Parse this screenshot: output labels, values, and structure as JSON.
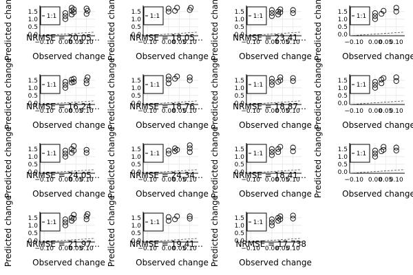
{
  "chart_data": {
    "type": "scatter",
    "layout": {
      "rows": 4,
      "cols": 4
    },
    "shared": {
      "xlabel": "Observed change",
      "ylabel": "Predicted change",
      "xlim": [
        -0.12,
        0.14
      ],
      "ylim": [
        -0.1,
        1.9
      ],
      "xticks": [
        -0.1,
        0.0,
        0.05,
        0.1
      ],
      "xtick_labels": [
        "−0.10",
        "0.00",
        "0.05",
        "0.10"
      ],
      "yticks": [
        0.0,
        0.5,
        1.0,
        1.5
      ],
      "ytick_labels": [
        "0.0",
        "0.5",
        "1.0",
        "1.5"
      ],
      "legend": "1:1",
      "legend_placement": "top-left",
      "grid": true,
      "marker": "open-circle"
    },
    "panels": [
      {
        "nrmse_label": "NRMSE = 20.05…",
        "points": {
          "x": [
            0.0,
            0.0,
            0.0,
            0.03,
            0.03,
            0.03,
            0.04,
            0.04,
            0.1,
            0.1,
            0.105
          ],
          "y": [
            1.0,
            1.2,
            1.4,
            1.3,
            1.55,
            1.75,
            1.45,
            1.65,
            1.35,
            1.7,
            1.55
          ]
        }
      },
      {
        "nrmse_label": "NRMSE = 18.05…",
        "points": {
          "x": [
            0.0,
            0.0,
            0.03,
            0.04,
            0.1,
            0.105
          ],
          "y": [
            1.5,
            1.7,
            1.55,
            1.75,
            1.6,
            1.75
          ]
        }
      },
      {
        "nrmse_label": "NRMSE = 23.41…",
        "points": {
          "x": [
            0.0,
            0.0,
            0.0,
            0.03,
            0.03,
            0.04,
            0.04,
            0.1,
            0.1
          ],
          "y": [
            1.2,
            1.4,
            1.6,
            1.3,
            1.5,
            1.45,
            1.65,
            1.4,
            1.6
          ]
        }
      },
      {
        "nrmse_label": "",
        "points": {
          "x": [
            0.0,
            0.0,
            0.0,
            0.03,
            0.04,
            0.1,
            0.1
          ],
          "y": [
            1.0,
            1.2,
            1.4,
            1.35,
            1.55,
            1.5,
            1.75
          ]
        }
      },
      {
        "nrmse_label": "NRMSE = 16.24…",
        "points": {
          "x": [
            0.0,
            0.0,
            0.0,
            0.03,
            0.03,
            0.04,
            0.04,
            0.1,
            0.1,
            0.105
          ],
          "y": [
            1.0,
            1.2,
            1.4,
            1.35,
            1.55,
            1.4,
            1.6,
            1.3,
            1.5,
            1.7
          ]
        }
      },
      {
        "nrmse_label": "NRMSE = 18.76…",
        "points": {
          "x": [
            0.0,
            0.0,
            0.0,
            0.03,
            0.04,
            0.1,
            0.1
          ],
          "y": [
            1.3,
            1.55,
            1.75,
            1.6,
            1.75,
            1.5,
            1.7
          ]
        }
      },
      {
        "nrmse_label": "NRMSE = 18.87…",
        "points": {
          "x": [
            0.0,
            0.0,
            0.0,
            0.03,
            0.04,
            0.04,
            0.1,
            0.1
          ],
          "y": [
            1.2,
            1.4,
            1.6,
            1.4,
            1.5,
            1.7,
            1.45,
            1.65
          ]
        }
      },
      {
        "nrmse_label": "",
        "points": {
          "x": [
            0.0,
            0.0,
            0.0,
            0.03,
            0.03,
            0.04,
            0.1,
            0.1
          ],
          "y": [
            1.0,
            1.2,
            1.4,
            1.3,
            1.55,
            1.65,
            1.45,
            1.7
          ]
        }
      },
      {
        "nrmse_label": "NRMSE = 24.05…",
        "points": {
          "x": [
            0.0,
            0.0,
            0.0,
            0.03,
            0.03,
            0.04,
            0.04,
            0.1,
            0.1
          ],
          "y": [
            1.0,
            1.2,
            1.4,
            1.25,
            1.5,
            1.4,
            1.7,
            1.25,
            1.45
          ]
        }
      },
      {
        "nrmse_label": "NRMSE = 24.34…",
        "points": {
          "x": [
            0.0,
            0.0,
            0.03,
            0.03,
            0.04,
            0.1,
            0.1,
            0.1
          ],
          "y": [
            1.2,
            1.4,
            1.35,
            1.55,
            1.45,
            1.3,
            1.55,
            1.75
          ]
        }
      },
      {
        "nrmse_label": "NRMSE = 18.41…",
        "points": {
          "x": [
            0.0,
            0.0,
            0.0,
            0.03,
            0.03,
            0.04,
            0.1,
            0.1
          ],
          "y": [
            1.1,
            1.3,
            1.5,
            1.3,
            1.5,
            1.65,
            1.35,
            1.6
          ]
        }
      },
      {
        "nrmse_label": "",
        "points": {
          "x": [
            0.0,
            0.0,
            0.0,
            0.03,
            0.04,
            0.04,
            0.1,
            0.1
          ],
          "y": [
            1.0,
            1.2,
            1.4,
            1.35,
            1.45,
            1.65,
            1.4,
            1.6
          ]
        }
      },
      {
        "nrmse_label": "NRMSE = 21.97…",
        "points": {
          "x": [
            0.0,
            0.0,
            0.0,
            0.03,
            0.03,
            0.04,
            0.04,
            0.1,
            0.1,
            0.105
          ],
          "y": [
            1.0,
            1.2,
            1.4,
            1.3,
            1.5,
            1.45,
            1.7,
            1.4,
            1.6,
            1.75
          ]
        }
      },
      {
        "nrmse_label": "NRMSE = 19.41…",
        "points": {
          "x": [
            0.0,
            0.0,
            0.03,
            0.04,
            0.1,
            0.1
          ],
          "y": [
            1.3,
            1.55,
            1.4,
            1.6,
            1.45,
            1.6
          ]
        }
      },
      {
        "nrmse_label": "NRMSE = 17.738",
        "points": {
          "x": [
            0.0,
            0.0,
            0.0,
            0.03,
            0.03,
            0.04,
            0.04,
            0.1,
            0.1
          ],
          "y": [
            1.0,
            1.2,
            1.4,
            1.3,
            1.5,
            1.4,
            1.6,
            1.45,
            1.65
          ]
        }
      }
    ]
  }
}
